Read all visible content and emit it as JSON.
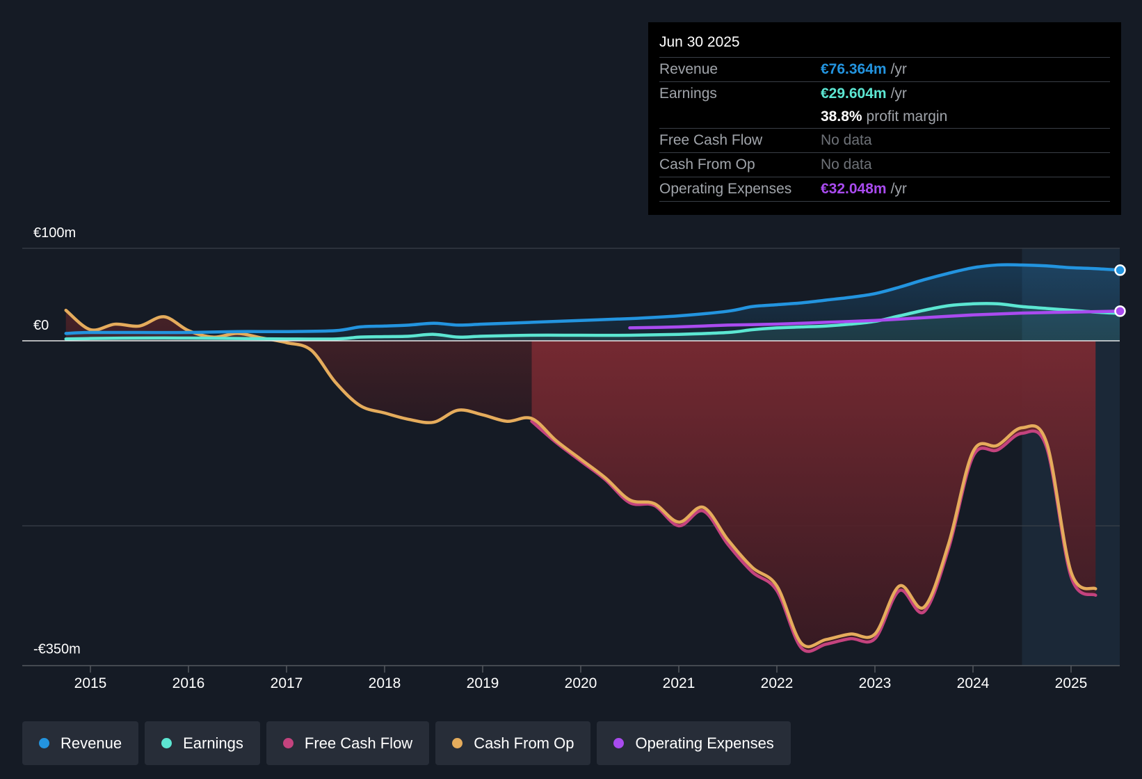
{
  "chart_data": {
    "type": "line",
    "title": "",
    "xlabel": "",
    "ylabel": "",
    "ylim": [
      -350,
      100
    ],
    "y_axis_labels": [
      "€100m",
      "€0",
      "-€350m"
    ],
    "x_tick_labels": [
      "2015",
      "2016",
      "2017",
      "2018",
      "2019",
      "2020",
      "2021",
      "2022",
      "2023",
      "2024",
      "2025"
    ],
    "x_ticks": [
      2015,
      2016,
      2017,
      2018,
      2019,
      2020,
      2021,
      2022,
      2023,
      2024,
      2025
    ],
    "xlim": [
      2014.25,
      2025.5
    ],
    "forecast_shade_start": 2024.5,
    "series": [
      {
        "name": "Revenue",
        "color": "#2394df",
        "x": [
          2014.75,
          2015.0,
          2015.5,
          2016.0,
          2016.5,
          2017.0,
          2017.5,
          2017.75,
          2018.0,
          2018.25,
          2018.5,
          2018.75,
          2019.0,
          2019.5,
          2020.0,
          2020.5,
          2021.0,
          2021.5,
          2021.75,
          2022.0,
          2022.25,
          2022.5,
          2022.75,
          2023.0,
          2023.25,
          2023.5,
          2023.75,
          2024.0,
          2024.25,
          2024.5,
          2024.75,
          2025.0,
          2025.25,
          2025.5
        ],
        "values": [
          8,
          9,
          9,
          9,
          10,
          10,
          11,
          15,
          16,
          17,
          19,
          17,
          18,
          20,
          22,
          24,
          27,
          32,
          37,
          39,
          41,
          44,
          47,
          51,
          58,
          66,
          73,
          79,
          82,
          82,
          81,
          79,
          78,
          76.364
        ]
      },
      {
        "name": "Earnings",
        "color": "#5ce6d2",
        "x": [
          2014.75,
          2015.0,
          2015.5,
          2016.0,
          2016.5,
          2017.0,
          2017.5,
          2017.75,
          2018.0,
          2018.25,
          2018.5,
          2018.75,
          2019.0,
          2019.5,
          2020.0,
          2020.5,
          2021.0,
          2021.5,
          2021.75,
          2022.0,
          2022.25,
          2022.5,
          2022.75,
          2023.0,
          2023.25,
          2023.5,
          2023.75,
          2024.0,
          2024.25,
          2024.5,
          2024.75,
          2025.0,
          2025.25,
          2025.5
        ],
        "values": [
          2,
          2.5,
          3,
          3,
          2.5,
          2,
          2,
          4,
          4.5,
          5,
          7,
          4,
          5,
          6,
          6,
          6,
          7,
          9,
          12,
          14,
          15,
          16,
          18,
          21,
          27,
          33,
          38,
          40,
          40,
          37,
          35,
          33,
          31,
          29.604
        ]
      },
      {
        "name": "Free Cash Flow",
        "color": "#c4437e",
        "x": [
          2019.5,
          2019.75,
          2020.0,
          2020.25,
          2020.5,
          2020.75,
          2021.0,
          2021.25,
          2021.5,
          2021.75,
          2022.0,
          2022.25,
          2022.5,
          2022.75,
          2023.0,
          2023.25,
          2023.5,
          2023.75,
          2024.0,
          2024.25,
          2024.5,
          2024.75,
          2025.0,
          2025.25
        ],
        "values": [
          -87,
          -110,
          -130,
          -150,
          -175,
          -178,
          -200,
          -184,
          -220,
          -250,
          -270,
          -332,
          -328,
          -322,
          -322,
          -270,
          -293,
          -225,
          -125,
          -118,
          -100,
          -115,
          -255,
          -275
        ]
      },
      {
        "name": "Cash From Op",
        "color": "#e5ac5c",
        "x": [
          2014.75,
          2015.0,
          2015.25,
          2015.5,
          2015.75,
          2016.0,
          2016.25,
          2016.5,
          2016.75,
          2017.0,
          2017.25,
          2017.5,
          2017.75,
          2018.0,
          2018.25,
          2018.5,
          2018.75,
          2019.0,
          2019.25,
          2019.5,
          2019.75,
          2020.0,
          2020.25,
          2020.5,
          2020.75,
          2021.0,
          2021.25,
          2021.5,
          2021.75,
          2022.0,
          2022.25,
          2022.5,
          2022.75,
          2023.0,
          2023.25,
          2023.5,
          2023.75,
          2024.0,
          2024.25,
          2024.5,
          2024.75,
          2025.0,
          2025.25
        ],
        "values": [
          33,
          12,
          18,
          16,
          26,
          11,
          4,
          8,
          3,
          -2,
          -10,
          -45,
          -70,
          -78,
          -85,
          -88,
          -75,
          -80,
          -87,
          -84,
          -108,
          -128,
          -148,
          -172,
          -176,
          -196,
          -180,
          -215,
          -245,
          -265,
          -327,
          -323,
          -317,
          -317,
          -265,
          -288,
          -220,
          -120,
          -113,
          -94,
          -110,
          -250,
          -268
        ]
      },
      {
        "name": "Operating Expenses",
        "color": "#a94bef",
        "x": [
          2020.5,
          2021.0,
          2021.5,
          2022.0,
          2022.5,
          2023.0,
          2023.5,
          2024.0,
          2024.5,
          2025.0,
          2025.5
        ],
        "values": [
          14,
          15,
          17,
          18,
          20,
          22,
          25,
          28,
          30,
          31,
          32.048
        ]
      }
    ]
  },
  "tooltip": {
    "date": "Jun 30 2025",
    "revenue_label": "Revenue",
    "revenue_value": "€76.364m",
    "revenue_unit": "/yr",
    "earnings_label": "Earnings",
    "earnings_value": "€29.604m",
    "earnings_unit": "/yr",
    "margin_value": "38.8%",
    "margin_label": "profit margin",
    "fcf_label": "Free Cash Flow",
    "fcf_value": "No data",
    "cfo_label": "Cash From Op",
    "cfo_value": "No data",
    "opex_label": "Operating Expenses",
    "opex_value": "€32.048m",
    "opex_unit": "/yr"
  },
  "legend": [
    {
      "label": "Revenue",
      "color": "#2394df"
    },
    {
      "label": "Earnings",
      "color": "#5ce6d2"
    },
    {
      "label": "Free Cash Flow",
      "color": "#c4437e"
    },
    {
      "label": "Cash From Op",
      "color": "#e5ac5c"
    },
    {
      "label": "Operating Expenses",
      "color": "#a94bef"
    }
  ]
}
